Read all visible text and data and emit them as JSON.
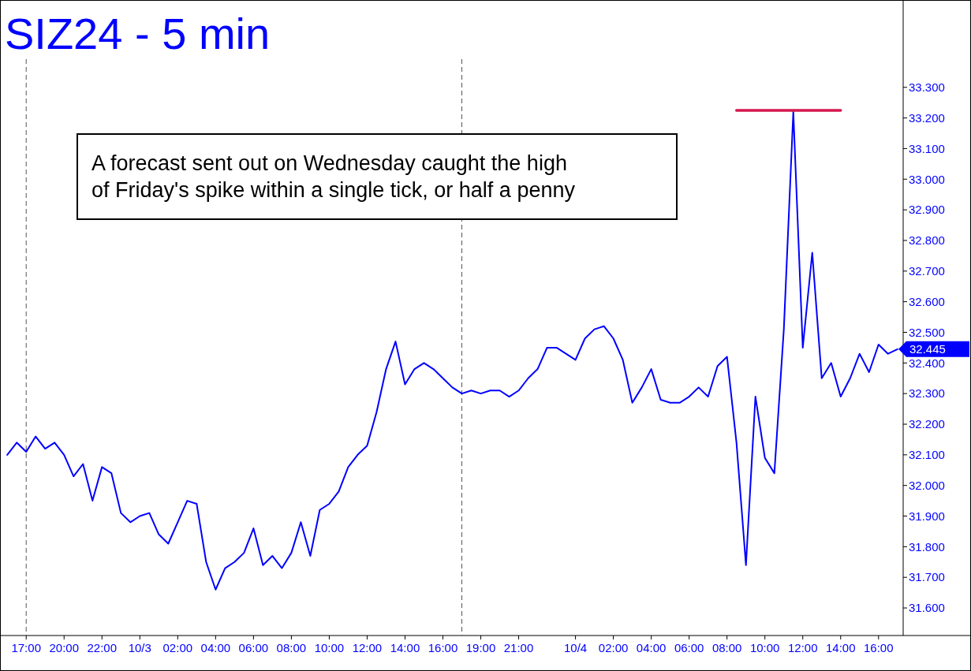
{
  "chart_data": {
    "type": "line",
    "title": "SIZ24 - 5 min",
    "categories": [
      null,
      null,
      "17:00",
      null,
      null,
      null,
      "20:00",
      null,
      null,
      null,
      "22:00",
      null,
      null,
      null,
      "10/3",
      null,
      null,
      null,
      "02:00",
      null,
      null,
      null,
      "04:00",
      null,
      null,
      null,
      "06:00",
      null,
      null,
      null,
      "08:00",
      null,
      null,
      null,
      "10:00",
      null,
      null,
      null,
      "12:00",
      null,
      null,
      null,
      "14:00",
      null,
      null,
      null,
      "16:00",
      null,
      null,
      null,
      "19:00",
      null,
      null,
      null,
      "21:00",
      null,
      null,
      null,
      null,
      null,
      "10/4",
      null,
      null,
      null,
      "02:00",
      null,
      null,
      null,
      "04:00",
      null,
      null,
      null,
      "06:00",
      null,
      null,
      null,
      "08:00",
      null,
      null,
      null,
      "10:00",
      null,
      null,
      null,
      "12:00",
      null,
      null,
      null,
      "14:00",
      null,
      null,
      null,
      "16:00",
      null,
      null
    ],
    "series": [
      {
        "color": "#0000ff",
        "values": [
          32.1,
          32.14,
          32.11,
          32.16,
          32.12,
          32.14,
          32.1,
          32.03,
          32.07,
          31.95,
          32.06,
          32.04,
          31.91,
          31.88,
          31.9,
          31.91,
          31.84,
          31.81,
          31.88,
          31.95,
          31.94,
          31.75,
          31.66,
          31.73,
          31.75,
          31.78,
          31.86,
          31.74,
          31.77,
          31.73,
          31.78,
          31.88,
          31.77,
          31.92,
          31.94,
          31.98,
          32.06,
          32.1,
          32.13,
          32.24,
          32.38,
          32.47,
          32.33,
          32.38,
          32.4,
          32.38,
          32.35,
          32.32,
          32.3,
          32.31,
          32.3,
          32.31,
          32.31,
          32.29,
          32.31,
          32.35,
          32.38,
          32.45,
          32.45,
          32.43,
          32.41,
          32.48,
          32.51,
          32.52,
          32.48,
          32.41,
          32.27,
          32.32,
          32.38,
          32.28,
          32.27,
          32.27,
          32.29,
          32.32,
          32.29,
          32.39,
          32.42,
          32.14,
          31.74,
          32.29,
          32.09,
          32.04,
          32.51,
          33.22,
          32.45,
          32.76,
          32.35,
          32.4,
          32.29,
          32.35,
          32.43,
          32.37,
          32.46,
          32.43,
          32.445
        ]
      },
      {
        "type": "line",
        "color": "#d6184f",
        "values": [
          null,
          null,
          null,
          null,
          null,
          null,
          null,
          null,
          null,
          null,
          null,
          null,
          null,
          null,
          null,
          null,
          null,
          null,
          null,
          null,
          null,
          null,
          null,
          null,
          null,
          null,
          null,
          null,
          null,
          null,
          null,
          null,
          null,
          null,
          null,
          null,
          null,
          null,
          null,
          null,
          null,
          null,
          null,
          null,
          null,
          null,
          null,
          null,
          null,
          null,
          null,
          null,
          null,
          null,
          null,
          null,
          null,
          null,
          null,
          null,
          null,
          null,
          null,
          null,
          null,
          null,
          null,
          null,
          null,
          null,
          null,
          null,
          null,
          null,
          null,
          null,
          null,
          33.225,
          33.225,
          33.225,
          33.225,
          33.225,
          33.225,
          33.225,
          33.225,
          33.225,
          33.225,
          33.225,
          33.225,
          null,
          null,
          null,
          null,
          null,
          null
        ]
      }
    ],
    "ylim": [
      31.51,
      33.58
    ],
    "yticks": [
      {
        "value": 31.6,
        "label": "31.600"
      },
      {
        "value": 31.7,
        "label": "31.700"
      },
      {
        "value": 31.8,
        "label": "31.800"
      },
      {
        "value": 31.9,
        "label": "31.900"
      },
      {
        "value": 32.0,
        "label": "32.000"
      },
      {
        "value": 32.1,
        "label": "32.100"
      },
      {
        "value": 32.2,
        "label": "32.200"
      },
      {
        "value": 32.3,
        "label": "32.300"
      },
      {
        "value": 32.4,
        "label": "32.400"
      },
      {
        "value": 32.5,
        "label": "32.500"
      },
      {
        "value": 32.6,
        "label": "32.600"
      },
      {
        "value": 32.7,
        "label": "32.700"
      },
      {
        "value": 32.8,
        "label": "32.800"
      },
      {
        "value": 32.9,
        "label": "32.900"
      },
      {
        "value": 33.0,
        "label": "33.000"
      },
      {
        "value": 33.1,
        "label": "33.100"
      },
      {
        "value": 33.2,
        "label": "33.200"
      },
      {
        "value": 33.3,
        "label": "33.300"
      }
    ],
    "annotations": [
      "A forecast sent out on Wednesday caught the high\nof Friday's spike within a single tick, or half a penny",
      "32.445"
    ]
  }
}
